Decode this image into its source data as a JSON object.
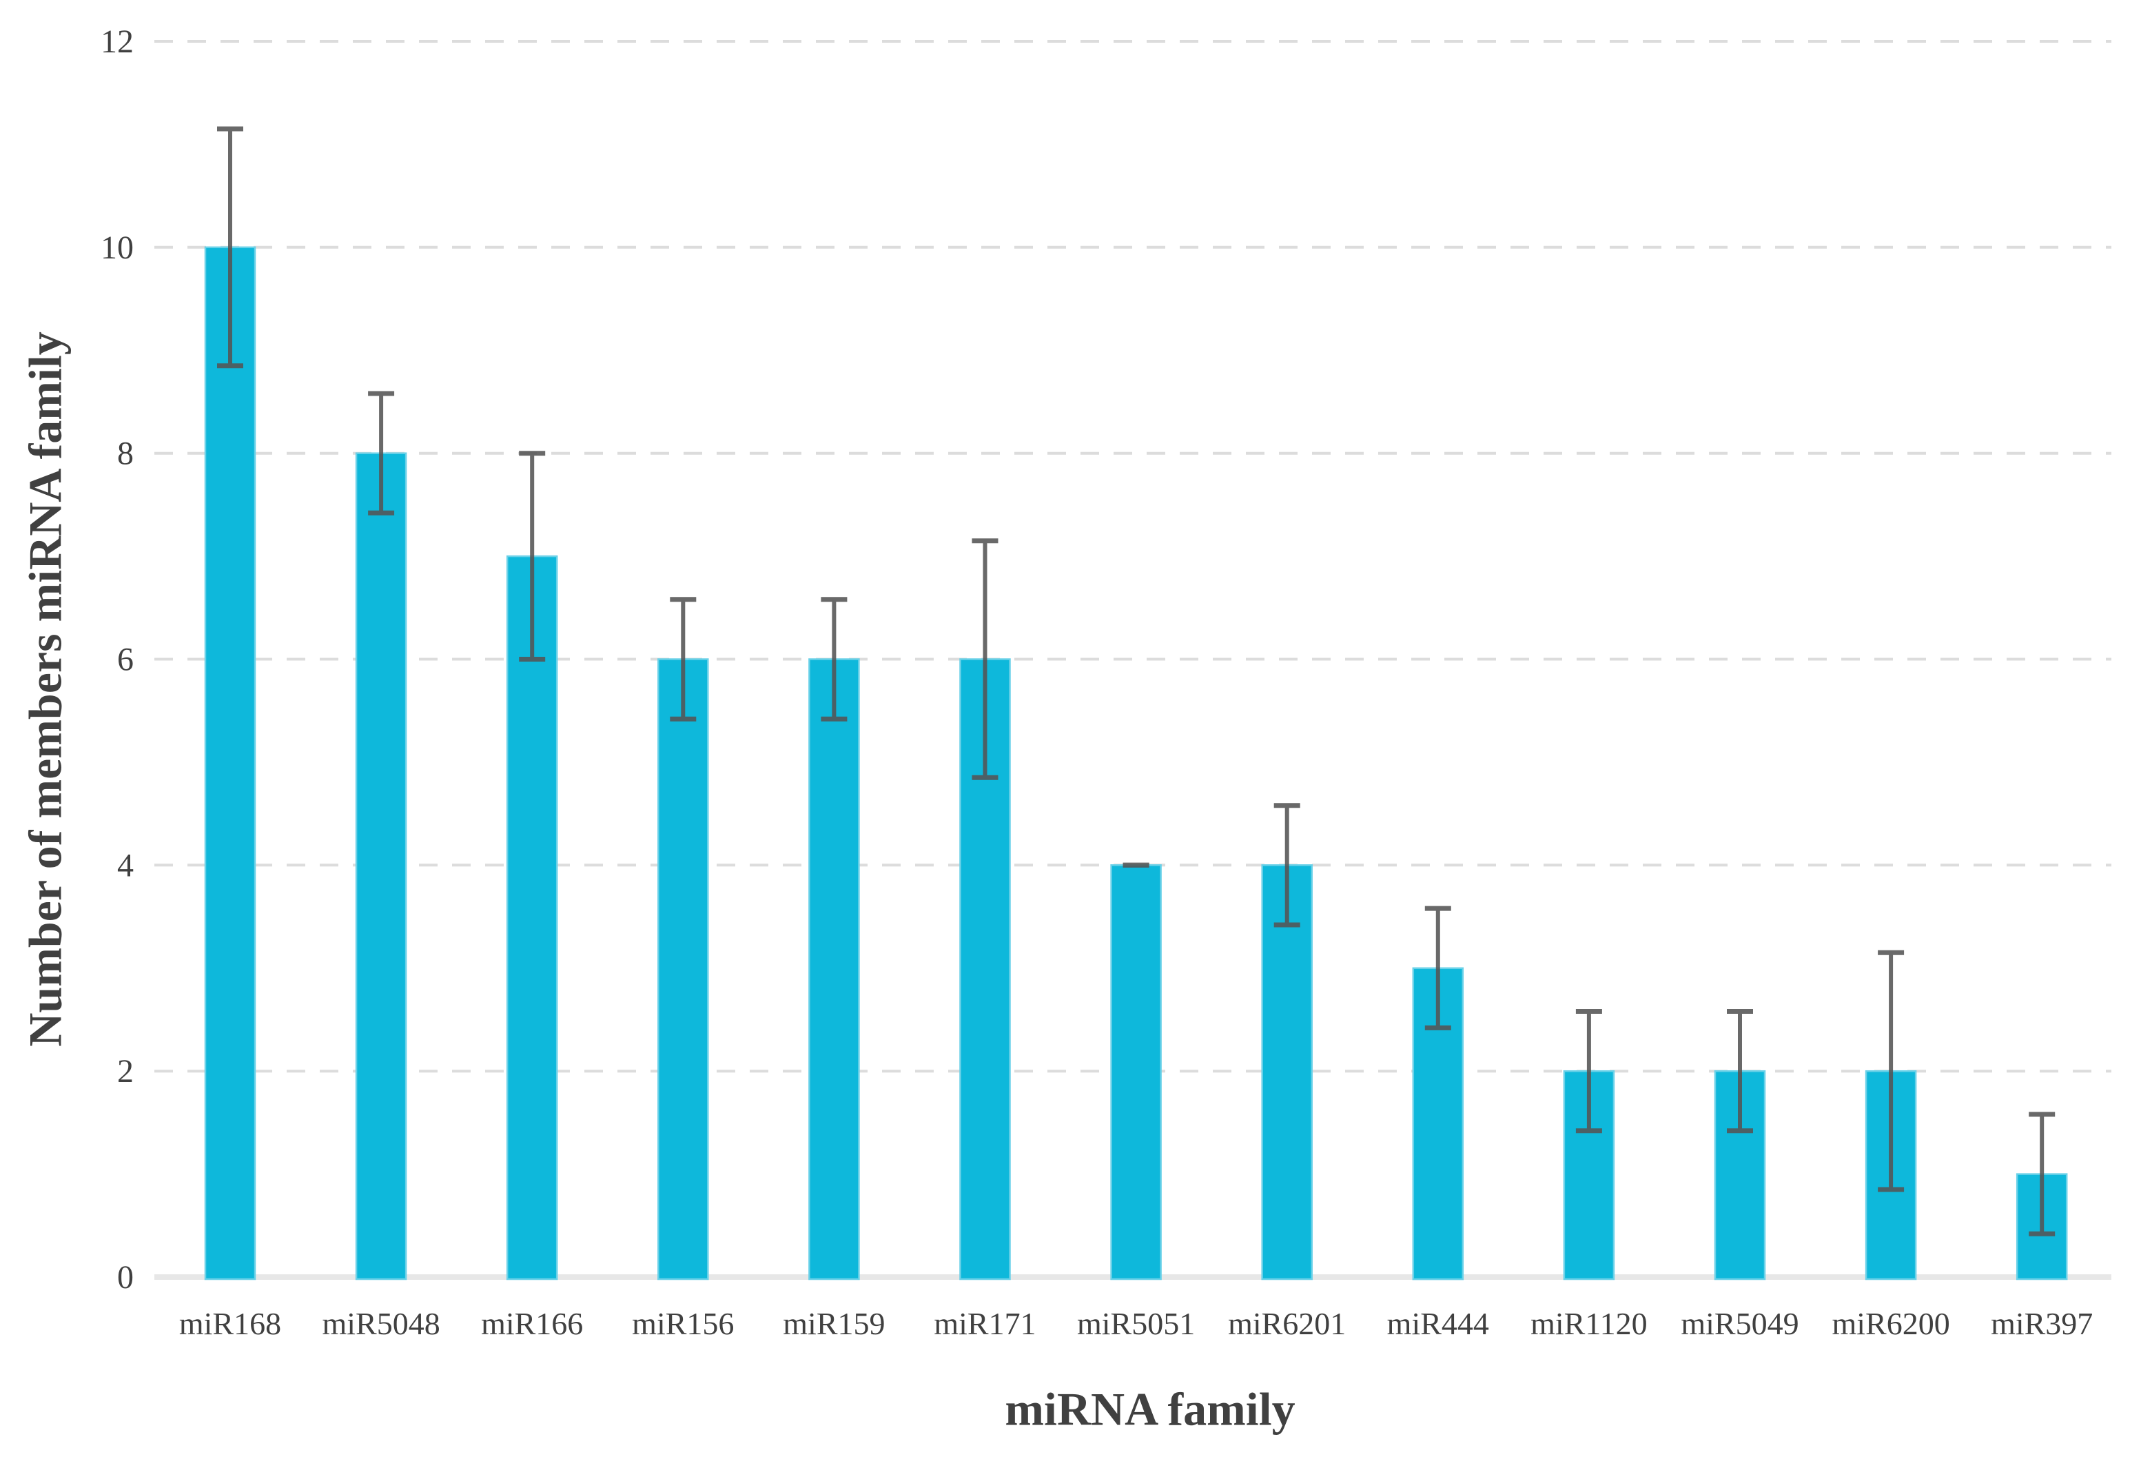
{
  "figure": {
    "background": "#ffffff"
  },
  "chart_data": {
    "type": "bar",
    "title": "",
    "xlabel": "miRNA family",
    "ylabel": "Number of members miRNA family",
    "categories": [
      "miR168",
      "miR5048",
      "miR166",
      "miR156",
      "miR159",
      "miR171",
      "miR5051",
      "miR6201",
      "miR444",
      "miR1120",
      "miR5049",
      "miR6200",
      "miR397"
    ],
    "values": [
      10,
      8,
      7,
      6,
      6,
      6,
      4,
      4,
      3,
      2,
      2,
      2,
      1
    ],
    "error_bars": [
      1.15,
      0.58,
      1.0,
      0.58,
      0.58,
      1.15,
      0.0,
      0.58,
      0.58,
      0.58,
      0.58,
      1.15,
      0.58
    ],
    "ylim": [
      0,
      12
    ],
    "yticks": [
      0,
      2,
      4,
      6,
      8,
      10,
      12
    ],
    "grid": {
      "horizontal": true,
      "style": "dashed"
    },
    "legend": "none",
    "colors": {
      "bar_fill": "#0eb8db",
      "bar_edge": "#6ad1e8",
      "error_bar": "#555555",
      "gridline": "#dcdcdc",
      "axis_line": "#e7e7e7",
      "text": "#404040"
    }
  }
}
